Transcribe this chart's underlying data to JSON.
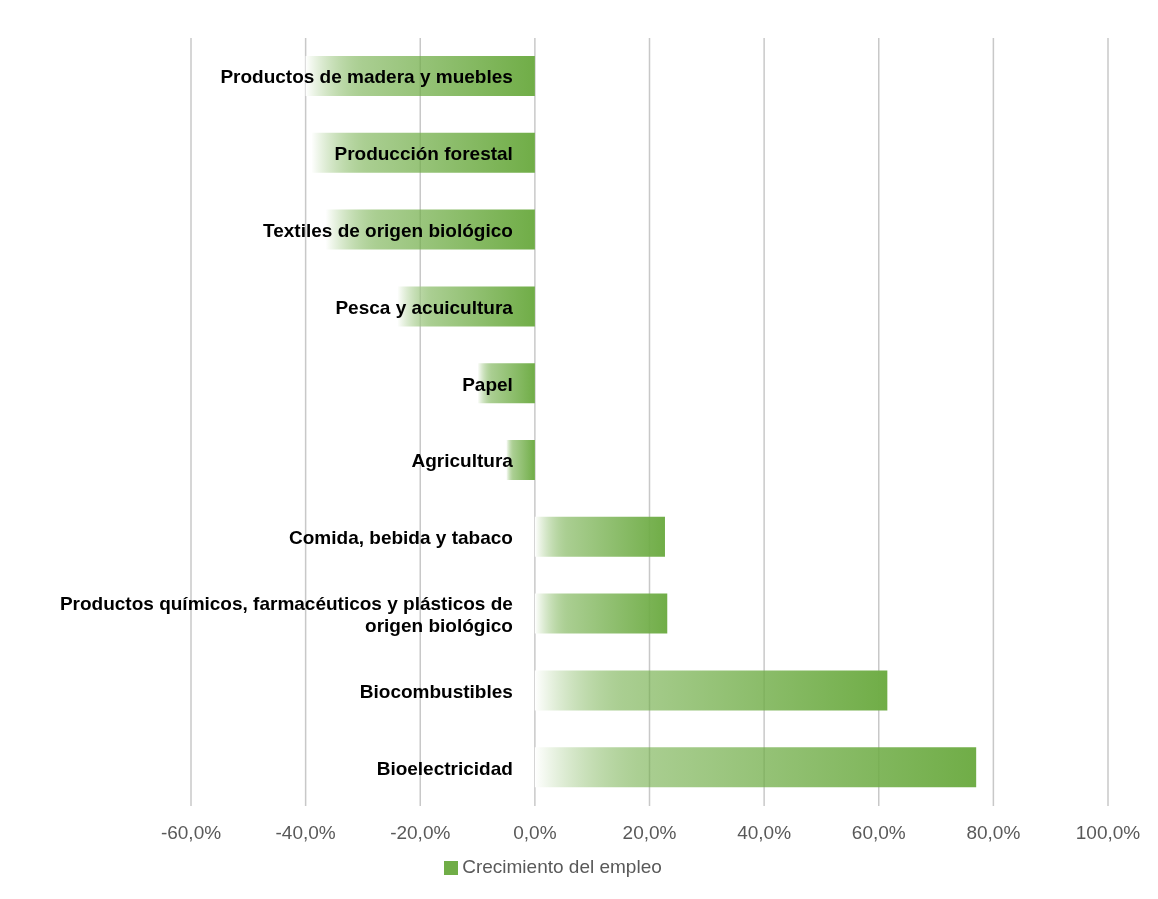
{
  "chart_data": {
    "type": "bar",
    "orientation": "horizontal",
    "categories": [
      "Productos de madera y muebles",
      "Producción forestal",
      "Textiles de origen biológico",
      "Pesca y acuicultura",
      "Papel",
      "Agricultura",
      "Comida, bebida y tabaco",
      "Productos químicos, farmacéuticos y plásticos de origen biológico",
      "Biocombustibles",
      "Bioelectricidad"
    ],
    "series": [
      {
        "name": "Crecimiento del empleo",
        "color": "#70ad47",
        "values": [
          -40,
          -39,
          -36.5,
          -24,
          -10,
          -5,
          22.7,
          23.1,
          61.5,
          77
        ]
      }
    ],
    "xlim": [
      -60,
      100
    ],
    "xticks": [
      {
        "value": -60,
        "label": "-60,0%"
      },
      {
        "value": -40,
        "label": "-40,0%"
      },
      {
        "value": -20,
        "label": "-20,0%"
      },
      {
        "value": 0,
        "label": "0,0%"
      },
      {
        "value": 20,
        "label": "20,0%"
      },
      {
        "value": 40,
        "label": "40,0%"
      },
      {
        "value": 60,
        "label": "60,0%"
      },
      {
        "value": 80,
        "label": "80,0%"
      },
      {
        "value": 100,
        "label": "100,0%"
      }
    ],
    "grid": "x",
    "legend": "bottom"
  }
}
